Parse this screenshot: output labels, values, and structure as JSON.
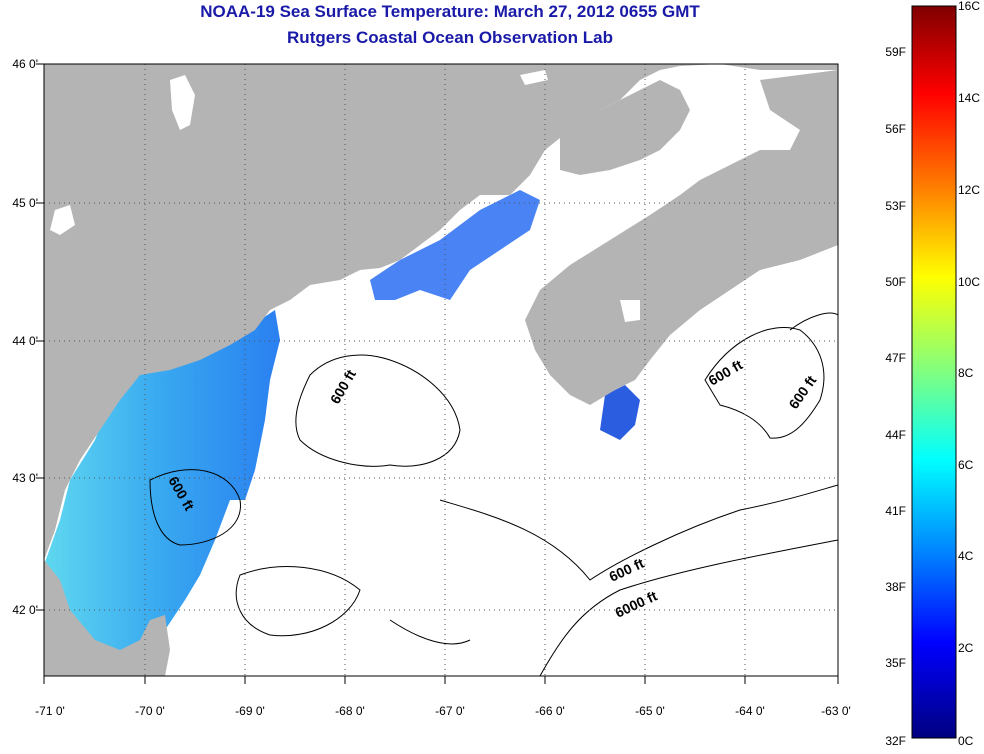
{
  "title": "NOAA-19 Sea Surface Temperature:  March 27, 2012 0655 GMT",
  "subtitle": "Rutgers Coastal Ocean Observation Lab",
  "axes": {
    "lon_ticks": [
      "-71 0'",
      "-70 0'",
      "-69 0'",
      "-68 0'",
      "-67 0'",
      "-66 0'",
      "-65 0'",
      "-64 0'",
      "-63 0'"
    ],
    "lat_ticks": [
      "46 0'",
      "45 0'",
      "44 0'",
      "43 0'",
      "42 0'"
    ]
  },
  "colorbar": {
    "celsius_labels": [
      "16C",
      "14C",
      "12C",
      "10C",
      "8C",
      "6C",
      "4C",
      "2C",
      "0C"
    ],
    "fahrenheit_labels": [
      "59F",
      "56F",
      "53F",
      "50F",
      "47F",
      "44F",
      "41F",
      "38F",
      "35F",
      "32F"
    ],
    "colors": [
      "#800000",
      "#ff0000",
      "#ff8000",
      "#ffff00",
      "#80ff80",
      "#00ffff",
      "#0080ff",
      "#0000ff",
      "#000080"
    ]
  },
  "contour_labels": [
    "600 ft",
    "600 ft",
    "600 ft",
    "600 ft",
    "600 ft",
    "6000 ft"
  ],
  "colors": {
    "land": "#b4b4b4",
    "title": "#1a1aa8",
    "grid": "#555555"
  }
}
